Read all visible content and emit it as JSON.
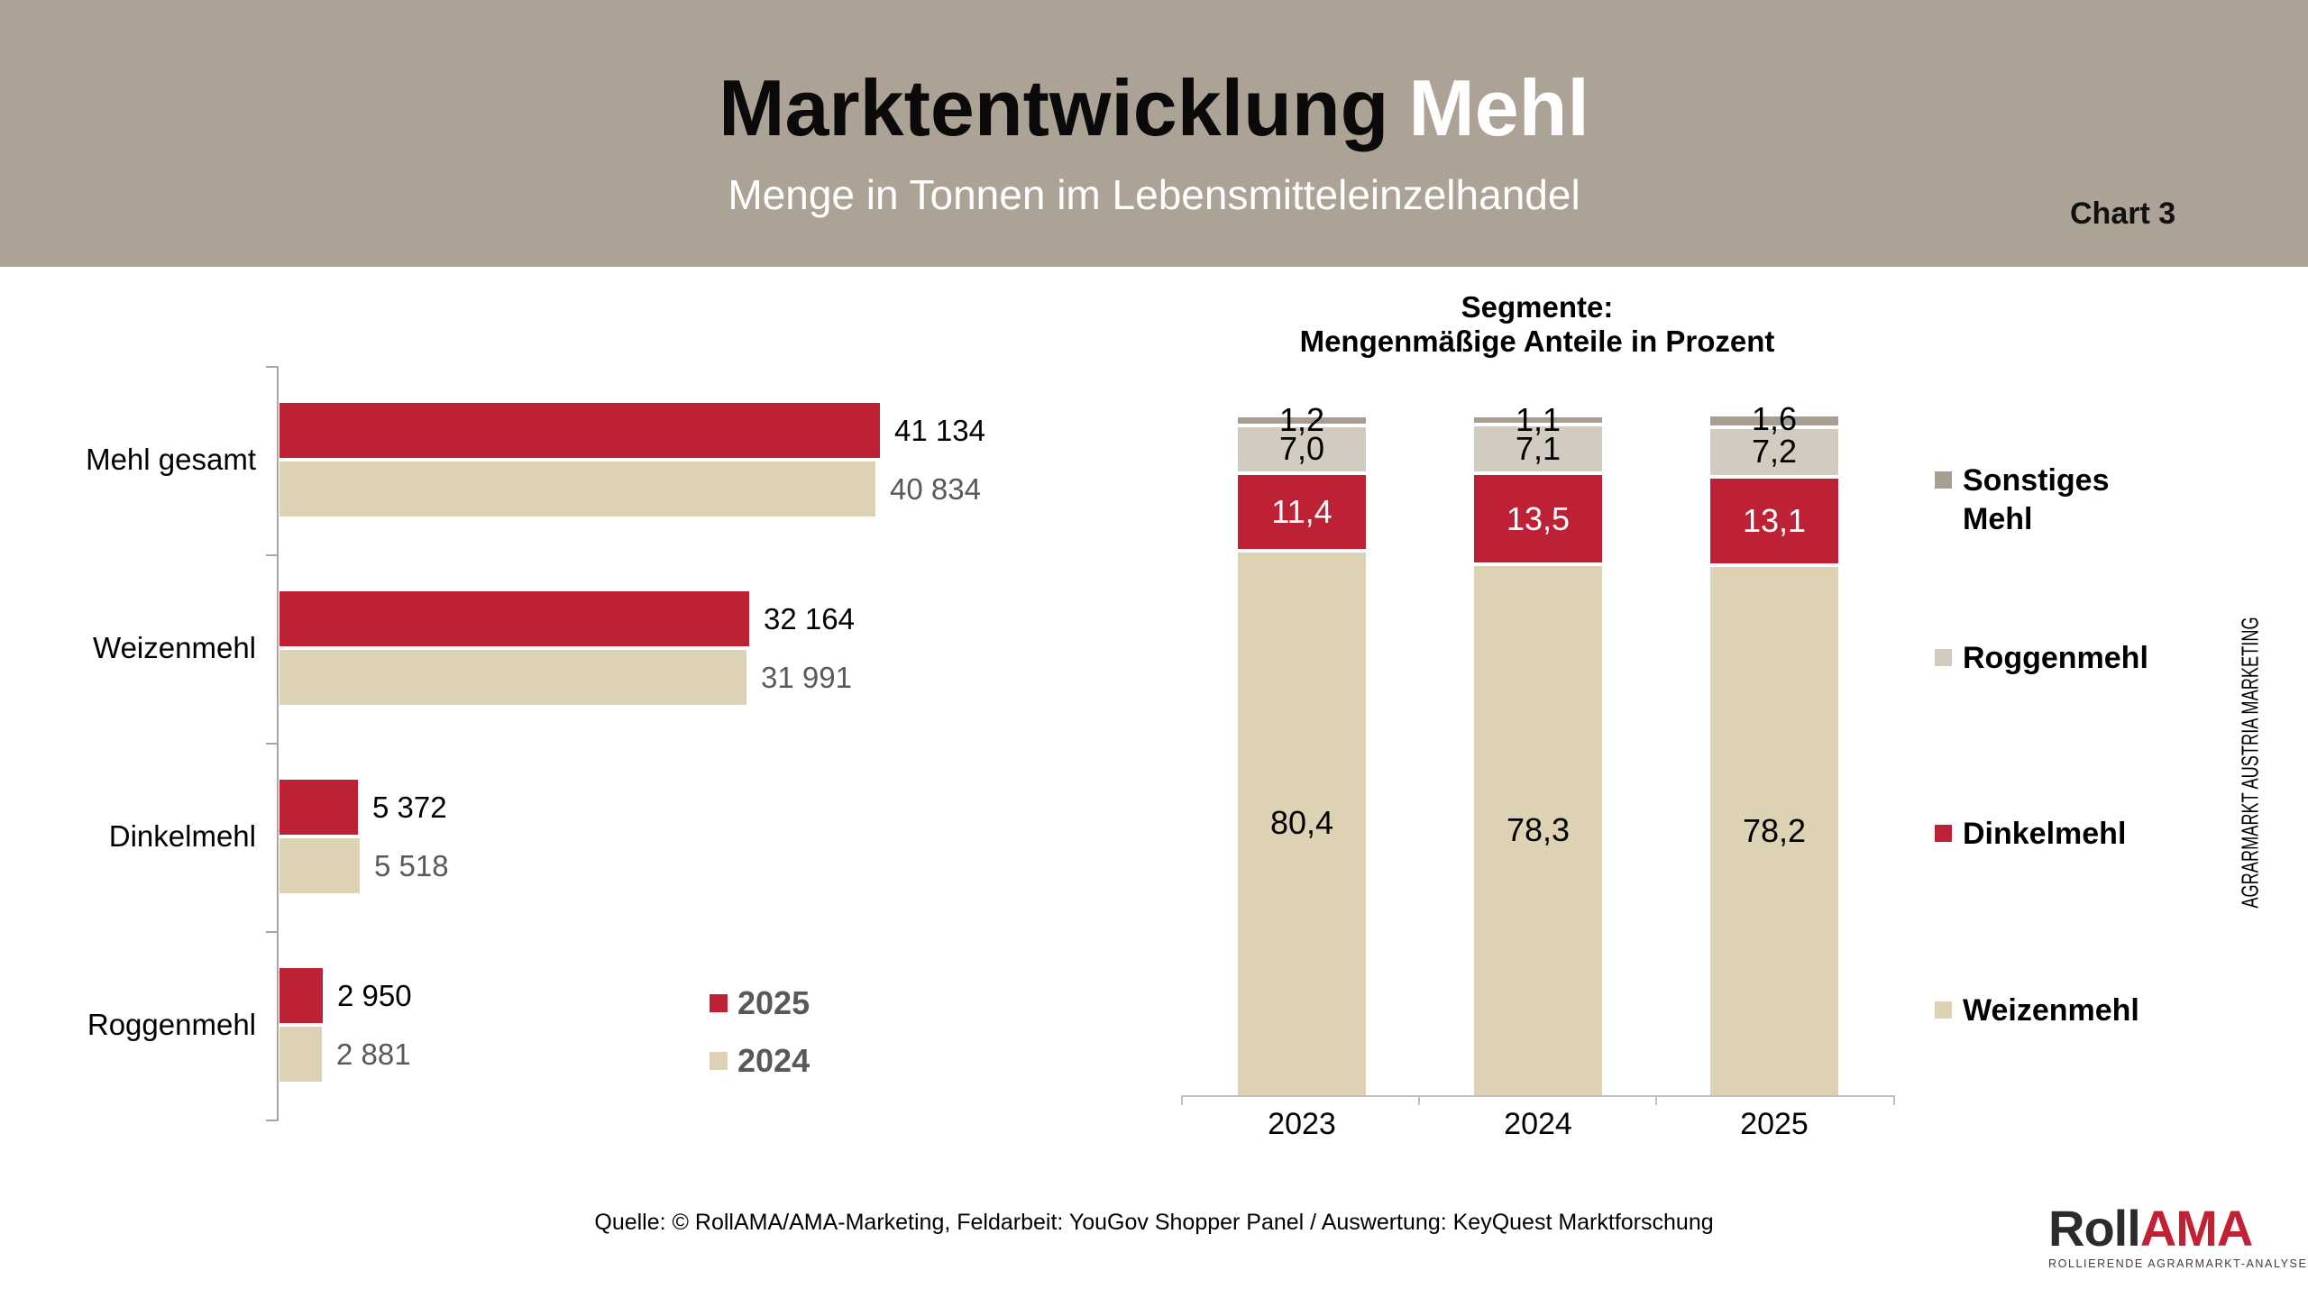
{
  "header": {
    "title_black": "Marktentwicklung",
    "title_accent": "Mehl",
    "subtitle": "Menge in Tonnen im Lebensmitteleinzelhandel",
    "chart_number": "Chart 3"
  },
  "chart_data": [
    {
      "type": "bar",
      "orientation": "horizontal",
      "categories": [
        "Mehl gesamt",
        "Weizenmehl",
        "Dinkelmehl",
        "Roggenmehl"
      ],
      "series": [
        {
          "name": "2025",
          "color": "#BD2136",
          "label_color": "#000000",
          "values": [
            41134,
            32164,
            5372,
            2950
          ],
          "value_labels": [
            "41 134",
            "32 164",
            "5 372",
            "2 950"
          ]
        },
        {
          "name": "2024",
          "color": "#DDD2B4",
          "label_color": "#595959",
          "values": [
            40834,
            31991,
            5518,
            2881
          ],
          "value_labels": [
            "40 834",
            "31 991",
            "5 518",
            "2 881"
          ]
        }
      ],
      "xlim": [
        0,
        45000
      ],
      "grid": false,
      "legend_position": "bottom-right-of-chart"
    },
    {
      "type": "bar",
      "stacked": true,
      "unit": "percent",
      "title_line1": "Segmente:",
      "title_line2": "Mengenmäßige Anteile in Prozent",
      "categories": [
        "2023",
        "2024",
        "2025"
      ],
      "series_bottom_up": [
        {
          "name": "Weizenmehl",
          "color": "#DDD2B4",
          "label_color": "#000000",
          "values": [
            80.4,
            78.3,
            78.2
          ],
          "value_labels": [
            "80,4",
            "78,3",
            "78,2"
          ]
        },
        {
          "name": "Dinkelmehl",
          "color": "#BD2136",
          "label_color": "#FFFFFF",
          "values": [
            11.4,
            13.5,
            13.1
          ],
          "value_labels": [
            "11,4",
            "13,5",
            "13,1"
          ]
        },
        {
          "name": "Roggenmehl",
          "color": "#D2CCC0",
          "label_color": "#000000",
          "values": [
            7.0,
            7.1,
            7.2
          ],
          "value_labels": [
            "7,0",
            "7,1",
            "7,2"
          ]
        },
        {
          "name": "Sonstiges Mehl",
          "color": "#A79D90",
          "label_color": "#000000",
          "values": [
            1.2,
            1.1,
            1.6
          ],
          "value_labels": [
            "1,2",
            "1,1",
            "1,6"
          ]
        }
      ],
      "ylim": [
        0,
        100
      ],
      "grid": false,
      "legend_position": "right"
    }
  ],
  "legend_left": [
    {
      "label": "2025",
      "color": "#BD2136"
    },
    {
      "label": "2024",
      "color": "#DDD2B4"
    }
  ],
  "legend_right": [
    {
      "lines": [
        "Sonstiges",
        "Mehl"
      ],
      "color": "#A79D90"
    },
    {
      "lines": [
        "Roggenmehl"
      ],
      "color": "#D2CCC0"
    },
    {
      "lines": [
        "Dinkelmehl"
      ],
      "color": "#BD2136"
    },
    {
      "lines": [
        "Weizenmehl"
      ],
      "color": "#DDD2B4"
    }
  ],
  "watermark": "AGRARMARKT AUSTRIA MARKETING",
  "source": "Quelle: © RollAMA/AMA-Marketing, Feldarbeit: YouGov Shopper Panel / Auswertung: KeyQuest Marktforschung",
  "logo": {
    "black": "Roll",
    "red": "AMA",
    "caption": "ROLLIERENDE AGRARMARKT-ANALYSE"
  },
  "colors": {
    "header_bg": "#ACA295",
    "accent_red": "#BD2136",
    "accent_beige": "#DDD2B4",
    "roggen_gray": "#D2CCC0",
    "sonstiges_taupe": "#A79D90",
    "value_gray": "#595959",
    "axis_gray": "#A6A6A6",
    "baseline_gray": "#C0C0C0"
  }
}
